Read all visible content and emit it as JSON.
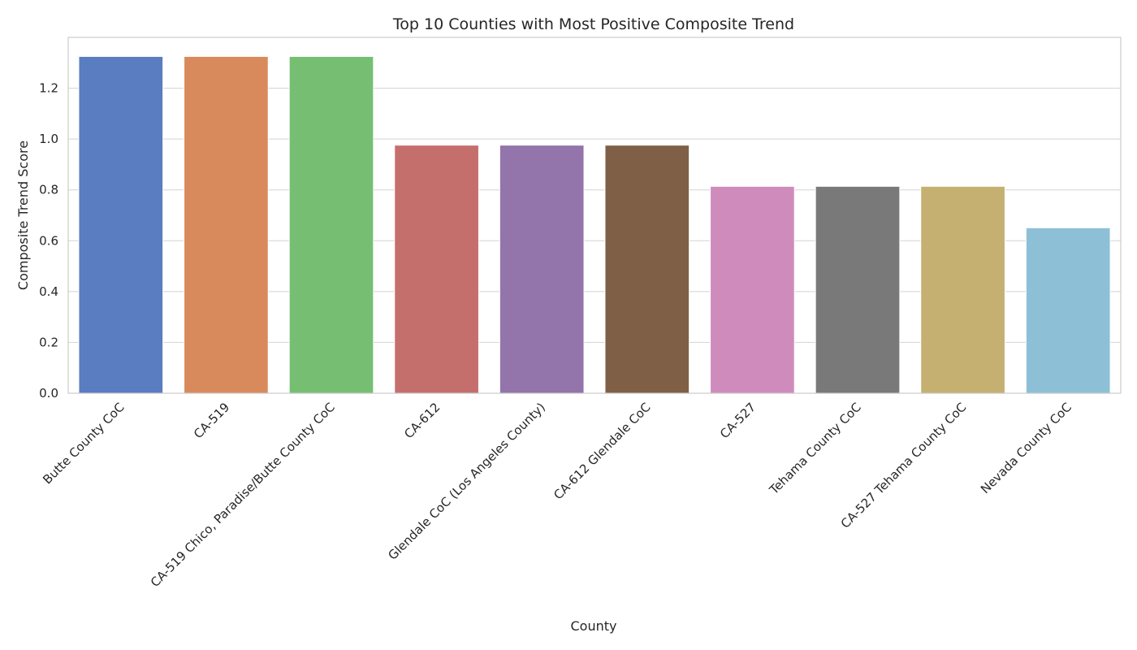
{
  "chart_data": {
    "type": "bar",
    "title": "Top 10 Counties with Most Positive Composite Trend",
    "xlabel": "County",
    "ylabel": "Composite Trend Score",
    "categories": [
      "Butte County CoC",
      "CA-519",
      "CA-519 Chico, Paradise/Butte County CoC",
      "CA-612",
      "Glendale CoC (Los Angeles County)",
      "CA-612 Glendale CoC",
      "CA-527",
      "Tehama County CoC",
      "CA-527 Tehama County CoC",
      "Nevada County CoC"
    ],
    "values": [
      1.325,
      1.325,
      1.325,
      0.976,
      0.976,
      0.976,
      0.814,
      0.814,
      0.814,
      0.651
    ],
    "colors": [
      "#5a7dc1",
      "#d98a5c",
      "#76bf72",
      "#c56f6d",
      "#9374ab",
      "#7f6046",
      "#d08bbd",
      "#797979",
      "#c5b071",
      "#8dc0d6"
    ],
    "ylim": [
      0,
      1.4
    ],
    "yticks": [
      0.0,
      0.2,
      0.4,
      0.6,
      0.8,
      1.0,
      1.2
    ],
    "ytick_labels": [
      "0.0",
      "0.2",
      "0.4",
      "0.6",
      "0.8",
      "1.0",
      "1.2"
    ],
    "grid": "horizontal",
    "legend": "none"
  }
}
